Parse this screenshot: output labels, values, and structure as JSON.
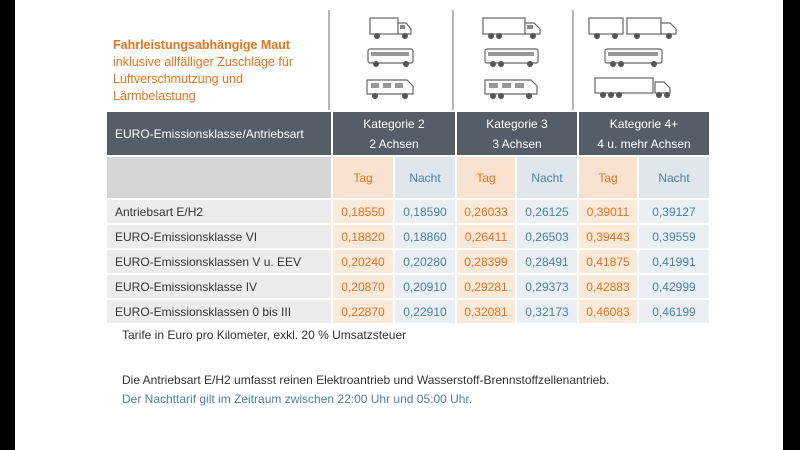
{
  "heading": {
    "bold": "Fahrleistungsabhängige Maut",
    "lines": [
      "inklusive allfälliger Zuschläge für",
      "Luftverschmutzung und",
      "Lärmbelastung"
    ]
  },
  "icons": {
    "k2": [
      "truck-icon",
      "bus-icon",
      "motorhome-icon"
    ],
    "k3": [
      "truck-icon",
      "bus-icon",
      "motorhome-icon"
    ],
    "k4": [
      "truck-trailer-icon",
      "coach-icon",
      "semi-trailer-icon"
    ]
  },
  "table": {
    "header_label": "EURO-Emissionsklasse/Antriebsart",
    "categories": [
      {
        "line1": "Kategorie 2",
        "line2": "2 Achsen"
      },
      {
        "line1": "Kategorie 3",
        "line2": "3 Achsen"
      },
      {
        "line1": "Kategorie 4+",
        "line2": "4 u. mehr Achsen"
      }
    ],
    "tag_label": "Tag",
    "nacht_label": "Nacht",
    "rows": [
      {
        "label": "Antriebsart E/H2",
        "values": [
          "0,18550",
          "0,18590",
          "0,26033",
          "0,26125",
          "0,39011",
          "0,39127"
        ]
      },
      {
        "label": "EURO-Emissionsklasse VI",
        "values": [
          "0,18820",
          "0,18860",
          "0,26411",
          "0,26503",
          "0,39443",
          "0,39559"
        ]
      },
      {
        "label": "EURO-Emissionsklassen V u. EEV",
        "values": [
          "0,20240",
          "0,20280",
          "0,28399",
          "0,28491",
          "0,41875",
          "0,41991"
        ]
      },
      {
        "label": "EURO-Emissionsklasse IV",
        "values": [
          "0,20870",
          "0,20910",
          "0,29281",
          "0,29373",
          "0,42883",
          "0,42999"
        ]
      },
      {
        "label": "EURO-Emissionsklassen 0 bis III",
        "values": [
          "0,22870",
          "0,22910",
          "0,32081",
          "0,32173",
          "0,46083",
          "0,46199"
        ]
      }
    ]
  },
  "notes": {
    "tarif": "Tarife in Euro pro Kilometer, exkl. 20 % Umsatzsteuer",
    "antrieb": "Die Antriebsart E/H2 umfasst reinen Elektroantrieb und Wasserstoff-Brennstoffzellenantrieb.",
    "nacht": "Der Nachttarif gilt im Zeitraum zwischen 22:00 Uhr und 05:00 Uhr."
  },
  "colors": {
    "tag": "#e8731e",
    "nacht": "#4a83a6",
    "header_bg": "#555d66"
  }
}
